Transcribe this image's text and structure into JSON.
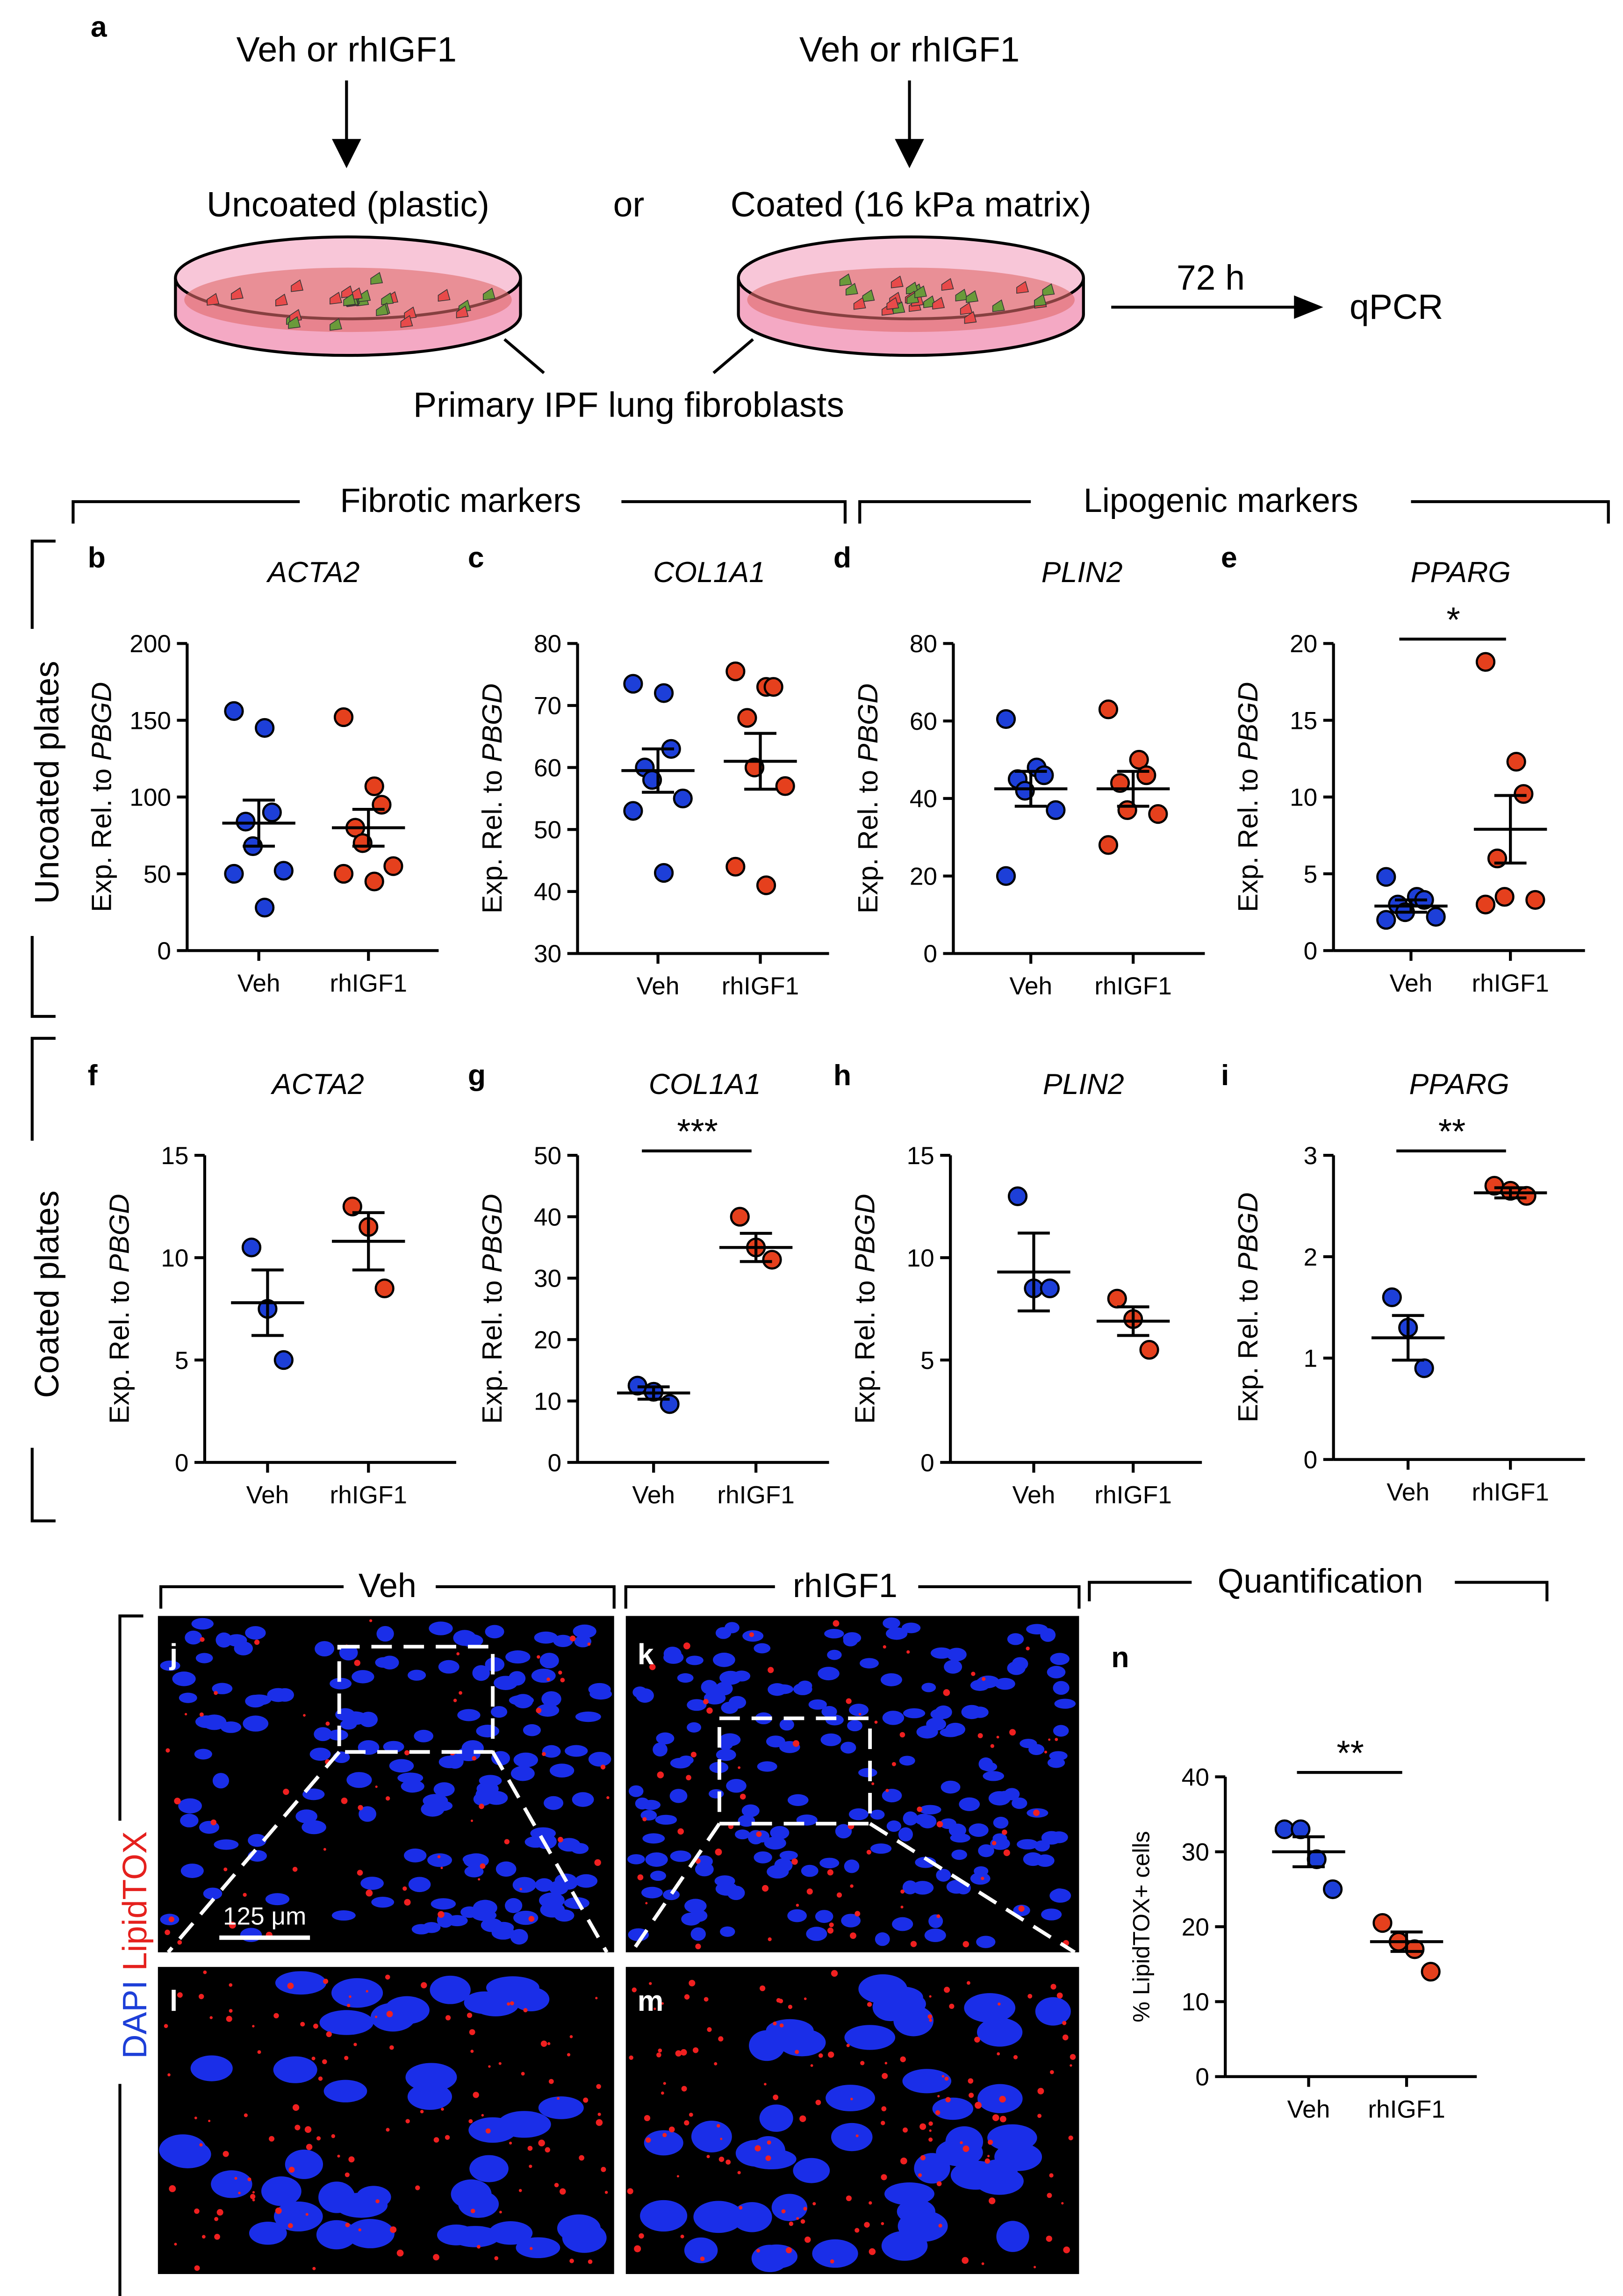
{
  "figure": {
    "panel_a": "a",
    "scheme": {
      "treat_left": "Veh or rhIGF1",
      "treat_right": "Veh or rhIGF1",
      "uncoated": "Uncoated (plastic)",
      "or": "or",
      "coated": "Coated (16 kPa matrix)",
      "time": "72 h",
      "readout": "qPCR",
      "cells": "Primary IPF lung fibroblasts"
    },
    "sections": {
      "fibrotic": "Fibrotic markers",
      "lipogenic": "Lipogenic markers",
      "row1": "Uncoated plates",
      "row2": "Coated plates"
    },
    "imaging": {
      "veh": "Veh",
      "igf": "rhIGF1",
      "quant": "Quantification",
      "j": "j",
      "k": "k",
      "l": "l",
      "m": "m",
      "scale": "125 μm",
      "stain_a": "DAPI",
      "stain_b": "LipidTOX"
    }
  },
  "chart_data": [
    {
      "type": "dot",
      "label": "b",
      "title": "ACTA2",
      "ylabel": "Exp. Rel. to",
      "ylabel_gene": "PBGD",
      "categories": [
        "Veh",
        "rhIGF1"
      ],
      "colors": [
        "#1d3fd8",
        "#e5401d"
      ],
      "values": [
        [
          156,
          145,
          90,
          84,
          68,
          52,
          50,
          28
        ],
        [
          152,
          107,
          95,
          80,
          70,
          55,
          50,
          45
        ]
      ],
      "mean": [
        83,
        80
      ],
      "sem": [
        15,
        12
      ],
      "ylim": [
        0,
        200
      ],
      "yticks": [
        0,
        50,
        100,
        150,
        200
      ]
    },
    {
      "type": "dot",
      "label": "c",
      "title": "COL1A1",
      "ylabel": "Exp. Rel. to",
      "ylabel_gene": "PBGD",
      "categories": [
        "Veh",
        "rhIGF1"
      ],
      "colors": [
        "#1d3fd8",
        "#e5401d"
      ],
      "values": [
        [
          73.5,
          72,
          63,
          60,
          58,
          55,
          53,
          43
        ],
        [
          75.5,
          73,
          73,
          68,
          60,
          57,
          44,
          41
        ]
      ],
      "mean": [
        59.5,
        61
      ],
      "sem": [
        3.5,
        4.5
      ],
      "ylim": [
        30,
        80
      ],
      "yticks": [
        30,
        40,
        50,
        60,
        70,
        80
      ]
    },
    {
      "type": "dot",
      "label": "d",
      "title": "PLIN2",
      "ylabel": "Exp. Rel. to",
      "ylabel_gene": "PBGD",
      "categories": [
        "Veh",
        "rhIGF1"
      ],
      "colors": [
        "#1d3fd8",
        "#e5401d"
      ],
      "values": [
        [
          60.5,
          48,
          46,
          45,
          42,
          37,
          20
        ],
        [
          63,
          50,
          46,
          44,
          37,
          36,
          28
        ]
      ],
      "mean": [
        42.5,
        42.5
      ],
      "sem": [
        4.5,
        4.5
      ],
      "ylim": [
        0,
        80
      ],
      "yticks": [
        0,
        20,
        40,
        60,
        80
      ]
    },
    {
      "type": "dot",
      "label": "e",
      "title": "PPARG",
      "ylabel": "Exp. Rel. to",
      "ylabel_gene": "PBGD",
      "categories": [
        "Veh",
        "rhIGF1"
      ],
      "colors": [
        "#1d3fd8",
        "#e5401d"
      ],
      "values": [
        [
          4.8,
          3.5,
          3.3,
          3,
          2.5,
          2.2,
          2
        ],
        [
          18.8,
          12.3,
          10.2,
          6,
          3.5,
          3.3,
          3
        ]
      ],
      "mean": [
        2.9,
        7.9
      ],
      "sem": [
        0.4,
        2.2
      ],
      "ylim": [
        0,
        20
      ],
      "yticks": [
        0,
        5,
        10,
        15,
        20
      ],
      "annotation": "*"
    },
    {
      "type": "dot",
      "label": "f",
      "title": "ACTA2",
      "ylabel": "Exp. Rel. to",
      "ylabel_gene": "PBGD",
      "categories": [
        "Veh",
        "rhIGF1"
      ],
      "colors": [
        "#1d3fd8",
        "#e5401d"
      ],
      "values": [
        [
          10.5,
          7.5,
          5
        ],
        [
          12.5,
          11.5,
          8.5
        ]
      ],
      "mean": [
        7.8,
        10.8
      ],
      "sem": [
        1.6,
        1.4
      ],
      "ylim": [
        0,
        15
      ],
      "yticks": [
        0,
        5,
        10,
        15
      ]
    },
    {
      "type": "dot",
      "label": "g",
      "title": "COL1A1",
      "ylabel": "Exp. Rel. to",
      "ylabel_gene": "PBGD",
      "categories": [
        "Veh",
        "rhIGF1"
      ],
      "colors": [
        "#1d3fd8",
        "#e5401d"
      ],
      "values": [
        [
          12.5,
          11.5,
          9.5
        ],
        [
          40,
          35,
          33
        ]
      ],
      "mean": [
        11.3,
        35
      ],
      "sem": [
        1,
        2.3
      ],
      "ylim": [
        0,
        50
      ],
      "yticks": [
        0,
        10,
        20,
        30,
        40,
        50
      ],
      "annotation": "***"
    },
    {
      "type": "dot",
      "label": "h",
      "title": "PLIN2",
      "ylabel": "Exp. Rel. to",
      "ylabel_gene": "PBGD",
      "categories": [
        "Veh",
        "rhIGF1"
      ],
      "colors": [
        "#1d3fd8",
        "#e5401d"
      ],
      "values": [
        [
          13,
          8.5,
          8.5
        ],
        [
          8,
          7,
          5.5
        ]
      ],
      "mean": [
        9.3,
        6.9
      ],
      "sem": [
        1.9,
        0.7
      ],
      "ylim": [
        0,
        15
      ],
      "yticks": [
        0,
        5,
        10,
        15
      ]
    },
    {
      "type": "dot",
      "label": "i",
      "title": "PPARG",
      "ylabel": "Exp. Rel. to",
      "ylabel_gene": "PBGD",
      "categories": [
        "Veh",
        "rhIGF1"
      ],
      "colors": [
        "#1d3fd8",
        "#e5401d"
      ],
      "values": [
        [
          1.6,
          1.3,
          0.9
        ],
        [
          2.7,
          2.65,
          2.6
        ]
      ],
      "mean": [
        1.2,
        2.63
      ],
      "sem": [
        0.22,
        0.05
      ],
      "ylim": [
        0,
        3
      ],
      "yticks": [
        0,
        1,
        2,
        3
      ],
      "annotation": "**"
    },
    {
      "type": "dot",
      "label": "n",
      "ylabel": "% LipidTOX+ cells",
      "categories": [
        "Veh",
        "rhIGF1"
      ],
      "colors": [
        "#1d3fd8",
        "#e5401d"
      ],
      "values": [
        [
          33,
          33,
          29,
          25
        ],
        [
          20.5,
          18,
          17,
          14
        ]
      ],
      "mean": [
        30,
        18
      ],
      "sem": [
        2,
        1.3
      ],
      "ylim": [
        0,
        40
      ],
      "yticks": [
        0,
        10,
        20,
        30,
        40
      ],
      "annotation": "**"
    }
  ]
}
